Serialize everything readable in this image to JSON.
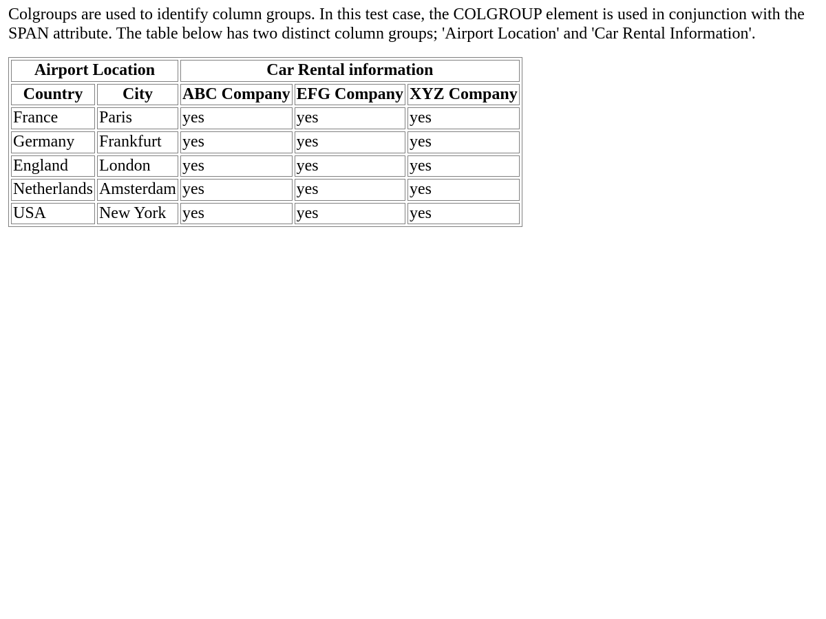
{
  "intro": "Colgroups are used to identify column groups. In this test case, the COLGROUP element is used in conjunction with the SPAN attribute. The table below has two distinct column groups; 'Airport Location' and 'Car Rental Information'.",
  "table": {
    "groups": [
      "Airport Location",
      "Car Rental information"
    ],
    "headers": [
      "Country",
      "City",
      "ABC Company",
      "EFG Company",
      "XYZ Company"
    ],
    "rows": [
      [
        "France",
        "Paris",
        "yes",
        "yes",
        "yes"
      ],
      [
        "Germany",
        "Frankfurt",
        "yes",
        "yes",
        "yes"
      ],
      [
        "England",
        "London",
        "yes",
        "yes",
        "yes"
      ],
      [
        "Netherlands",
        "Amsterdam",
        "yes",
        "yes",
        "yes"
      ],
      [
        "USA",
        "New York",
        "yes",
        "yes",
        "yes"
      ]
    ]
  }
}
